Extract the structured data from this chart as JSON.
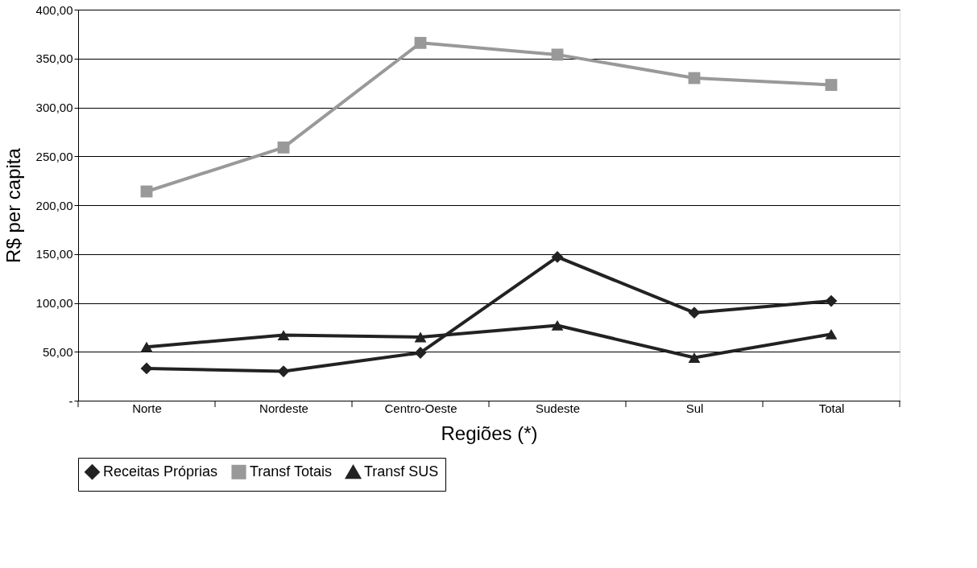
{
  "chart_data": {
    "type": "line",
    "xlabel": "Regiões (*)",
    "ylabel": "R$ per capita",
    "categories": [
      "Norte",
      "Nordeste",
      "Centro-Oeste",
      "Sudeste",
      "Sul",
      "Total"
    ],
    "series": [
      {
        "name": "Receitas Próprias",
        "color": "#222222",
        "marker": "diamond",
        "values": [
          33,
          30,
          49,
          147,
          90,
          102
        ]
      },
      {
        "name": "Transf Totais",
        "color": "#999999",
        "marker": "square",
        "values": [
          214,
          259,
          366,
          354,
          330,
          323
        ]
      },
      {
        "name": "Transf SUS",
        "color": "#222222",
        "marker": "triangle",
        "values": [
          55,
          67,
          65,
          77,
          44,
          68
        ]
      }
    ],
    "ylim": [
      0,
      400
    ],
    "yticks": [
      {
        "value": 0,
        "label": "-"
      },
      {
        "value": 50,
        "label": "50,00"
      },
      {
        "value": 100,
        "label": "100,00"
      },
      {
        "value": 150,
        "label": "150,00"
      },
      {
        "value": 200,
        "label": "200,00"
      },
      {
        "value": 250,
        "label": "250,00"
      },
      {
        "value": 300,
        "label": "300,00"
      },
      {
        "value": 350,
        "label": "350,00"
      },
      {
        "value": 400,
        "label": "400,00"
      }
    ],
    "grid": "y",
    "legend": "bottom",
    "line_style": "solid"
  }
}
